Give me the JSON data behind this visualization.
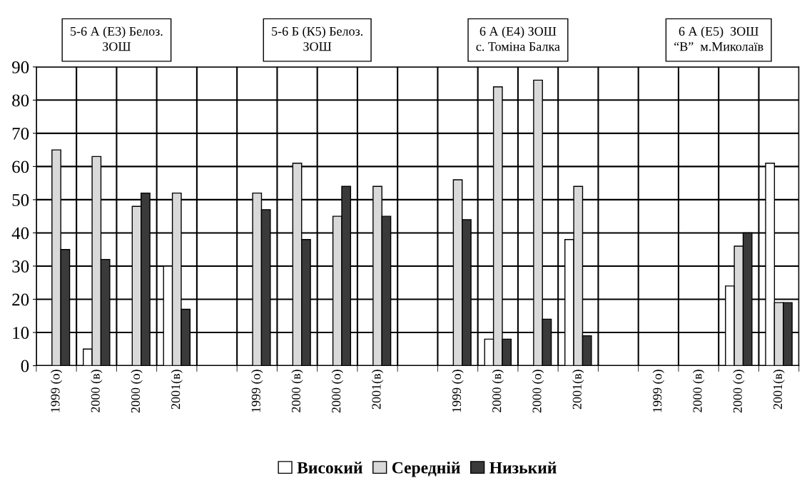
{
  "chart_data": {
    "type": "bar",
    "categories": [
      "1999 (о)",
      "2000 (в)",
      "2000 (о)",
      "2001(в)",
      null,
      "1999 (о)",
      "2000 (в)",
      "2000 (о)",
      "2001(в)",
      null,
      "1999 (о)",
      "2000 (в)",
      "2000 (о)",
      "2001(в)",
      null,
      "1999 (о)",
      "2000 (в)",
      "2000 (о)",
      "2001(в)"
    ],
    "series": [
      {
        "name": "Високий",
        "color": "#ffffff",
        "values": [
          0,
          5,
          0,
          30,
          0,
          0,
          0,
          0,
          0,
          0,
          0,
          8,
          0,
          38,
          0,
          null,
          null,
          24,
          61
        ]
      },
      {
        "name": "Середній",
        "color": "#d9d9d9",
        "values": [
          65,
          63,
          48,
          52,
          null,
          52,
          61,
          45,
          54,
          null,
          56,
          84,
          86,
          54,
          null,
          null,
          null,
          36,
          19
        ]
      },
      {
        "name": "Низький",
        "color": "#3a3a3a",
        "values": [
          35,
          32,
          52,
          17,
          null,
          47,
          38,
          54,
          45,
          null,
          44,
          8,
          14,
          9,
          null,
          null,
          null,
          40,
          19
        ]
      }
    ],
    "annotations": [
      "5-6 А (Е3) Белоз.\nЗОШ",
      "5-6 Б (К5) Белоз.\nЗОШ",
      "6 А (Е4) ЗОШ\nс. Томіна Балка",
      "6 А (Е5)  ЗОШ\n“В”  м.Миколаїв"
    ],
    "ylim": [
      0,
      90
    ],
    "yticks": [
      0,
      10,
      20,
      30,
      40,
      50,
      60,
      70,
      80,
      90
    ],
    "grid": true,
    "legend": "bottom"
  }
}
